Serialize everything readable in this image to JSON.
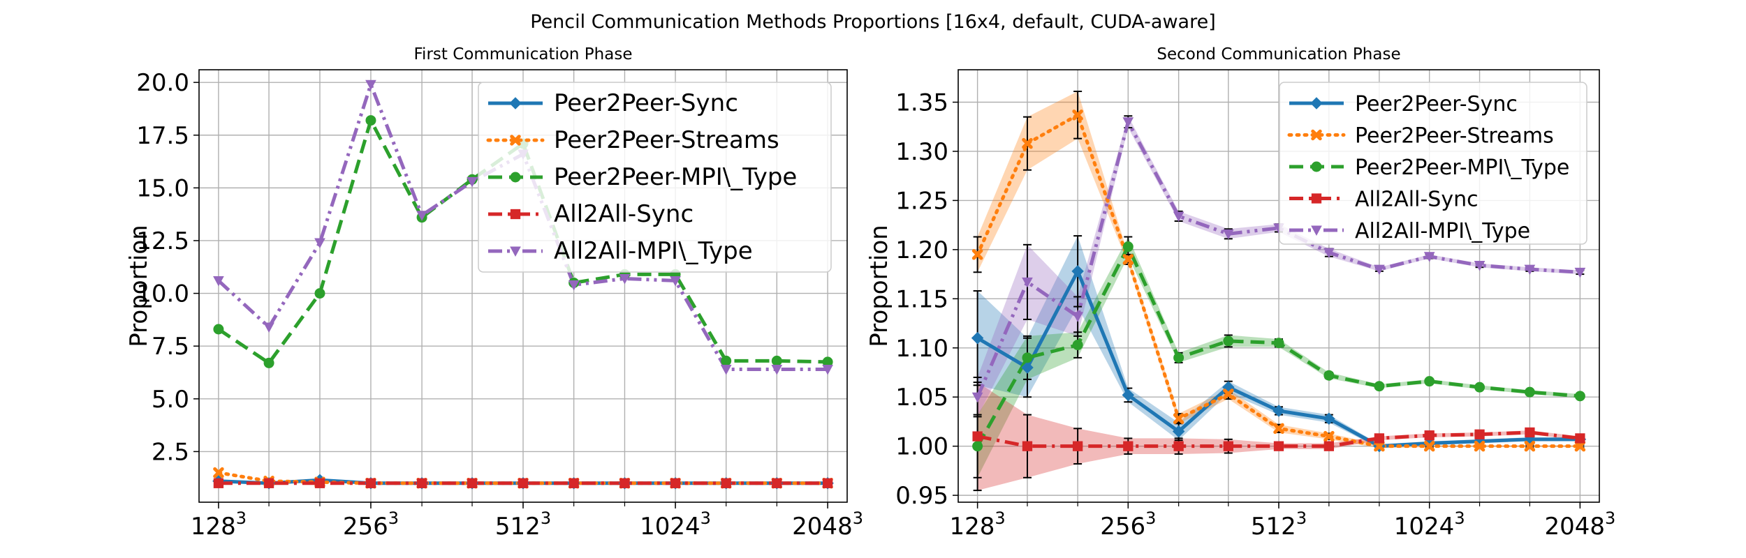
{
  "figure": {
    "title": "Pencil Communication Methods Proportions [16x4, default, CUDA-aware]"
  },
  "chart_data": [
    {
      "type": "line",
      "title": "First Communication Phase",
      "xlabel": "",
      "ylabel": "Proportion",
      "x": [
        128,
        161,
        203,
        256,
        323,
        406,
        512,
        645,
        813,
        1024,
        1290,
        1625,
        2048
      ],
      "xscale": "log",
      "xticks": [
        {
          "value": 128,
          "base": "128",
          "exp": "3"
        },
        {
          "value": 256,
          "base": "256",
          "exp": "3"
        },
        {
          "value": 512,
          "base": "512",
          "exp": "3"
        },
        {
          "value": 1024,
          "base": "1024",
          "exp": "3"
        },
        {
          "value": 2048,
          "base": "2048",
          "exp": "3"
        }
      ],
      "yticks": [
        {
          "value": 2.5,
          "label": "2.5"
        },
        {
          "value": 5,
          "label": "5.0"
        },
        {
          "value": 7.5,
          "label": "7.5"
        },
        {
          "value": 10,
          "label": "10.0"
        },
        {
          "value": 12.5,
          "label": "12.5"
        },
        {
          "value": 15,
          "label": "15.0"
        },
        {
          "value": 17.5,
          "label": "17.5"
        },
        {
          "value": 20,
          "label": "20.0"
        }
      ],
      "ylim": [
        0.1,
        20.6
      ],
      "grid": true,
      "legend": "top-right",
      "series": [
        {
          "name": "Peer2Peer-Sync",
          "color": "#1f77b4",
          "dash": "solid",
          "marker": "diamond",
          "values": [
            1.1,
            1.0,
            1.15,
            1.0,
            1.0,
            1.0,
            1.0,
            1.0,
            1.0,
            1.0,
            1.0,
            1.0,
            1.0
          ]
        },
        {
          "name": "Peer2Peer-Streams",
          "color": "#ff7f0e",
          "dash": "dot",
          "marker": "x",
          "values": [
            1.5,
            1.1,
            1.05,
            1.0,
            1.0,
            1.0,
            1.0,
            1.0,
            1.0,
            1.0,
            1.0,
            1.0,
            1.0
          ]
        },
        {
          "name": "Peer2Peer-MPI\\_Type",
          "color": "#2ca02c",
          "dash": "dash",
          "marker": "circle",
          "values": [
            8.3,
            6.7,
            10.0,
            18.2,
            13.6,
            15.4,
            17.1,
            10.5,
            10.9,
            10.9,
            6.8,
            6.8,
            6.75
          ]
        },
        {
          "name": "All2All-Sync",
          "color": "#d62728",
          "dash": "dashdot",
          "marker": "square",
          "values": [
            1.0,
            1.0,
            1.0,
            1.0,
            1.0,
            1.0,
            1.0,
            1.0,
            1.0,
            1.0,
            1.0,
            1.0,
            1.0
          ]
        },
        {
          "name": "All2All-MPI\\_Type",
          "color": "#9467bd",
          "dash": "dashdotdot",
          "marker": "triangle-down",
          "values": [
            10.6,
            8.4,
            12.4,
            19.9,
            13.7,
            15.3,
            16.6,
            10.4,
            10.7,
            10.6,
            6.4,
            6.4,
            6.4
          ]
        }
      ]
    },
    {
      "type": "line",
      "title": "Second Communication Phase",
      "xlabel": "",
      "ylabel": "Proportion",
      "x": [
        128,
        161,
        203,
        256,
        323,
        406,
        512,
        645,
        813,
        1024,
        1290,
        1625,
        2048
      ],
      "xscale": "log",
      "xticks": [
        {
          "value": 128,
          "base": "128",
          "exp": "3"
        },
        {
          "value": 256,
          "base": "256",
          "exp": "3"
        },
        {
          "value": 512,
          "base": "512",
          "exp": "3"
        },
        {
          "value": 1024,
          "base": "1024",
          "exp": "3"
        },
        {
          "value": 2048,
          "base": "2048",
          "exp": "3"
        }
      ],
      "yticks": [
        {
          "value": 0.95,
          "label": "0.95"
        },
        {
          "value": 1.0,
          "label": "1.00"
        },
        {
          "value": 1.05,
          "label": "1.05"
        },
        {
          "value": 1.1,
          "label": "1.10"
        },
        {
          "value": 1.15,
          "label": "1.15"
        },
        {
          "value": 1.2,
          "label": "1.20"
        },
        {
          "value": 1.25,
          "label": "1.25"
        },
        {
          "value": 1.3,
          "label": "1.30"
        },
        {
          "value": 1.35,
          "label": "1.35"
        }
      ],
      "ylim": [
        0.943,
        1.383
      ],
      "grid": true,
      "legend": "top-right",
      "series": [
        {
          "name": "Peer2Peer-Sync",
          "color": "#1f77b4",
          "dash": "solid",
          "marker": "diamond",
          "values": [
            1.11,
            1.08,
            1.178,
            1.052,
            1.015,
            1.06,
            1.036,
            1.028,
            1.0,
            1.003,
            1.005,
            1.007,
            1.007
          ],
          "err": [
            0.048,
            0.03,
            0.036,
            0.007,
            0.009,
            0.006,
            0.004,
            0.004,
            0.002,
            0.002,
            0.002,
            0.002,
            0.002
          ]
        },
        {
          "name": "Peer2Peer-Streams",
          "color": "#ff7f0e",
          "dash": "dot",
          "marker": "x",
          "values": [
            1.195,
            1.308,
            1.337,
            1.19,
            1.028,
            1.053,
            1.018,
            1.01,
            1.0,
            1.0,
            1.0,
            1.0,
            1.0
          ],
          "err": [
            0.018,
            0.027,
            0.024,
            0.005,
            0.005,
            0.005,
            0.004,
            0.003,
            0.002,
            0.001,
            0.001,
            0.001,
            0.001
          ]
        },
        {
          "name": "Peer2Peer-MPI\\_Type",
          "color": "#2ca02c",
          "dash": "dash",
          "marker": "circle",
          "values": [
            1.0,
            1.09,
            1.103,
            1.203,
            1.09,
            1.107,
            1.105,
            1.072,
            1.061,
            1.066,
            1.06,
            1.055,
            1.051
          ],
          "err": [
            0.032,
            0.022,
            0.013,
            0.01,
            0.005,
            0.006,
            0.004,
            0.003,
            0.002,
            0.002,
            0.002,
            0.002,
            0.002
          ]
        },
        {
          "name": "All2All-Sync",
          "color": "#d62728",
          "dash": "dashdot",
          "marker": "square",
          "values": [
            1.01,
            1.0,
            1.0,
            1.0,
            1.0,
            1.0,
            1.0,
            1.0,
            1.008,
            1.011,
            1.012,
            1.014,
            1.008
          ],
          "err": [
            0.055,
            0.032,
            0.018,
            0.008,
            0.008,
            0.007,
            0.003,
            0.003,
            0.002,
            0.002,
            0.002,
            0.002,
            0.002
          ]
        },
        {
          "name": "All2All-MPI\\_Type",
          "color": "#9467bd",
          "dash": "dashdotdot",
          "marker": "triangle-down",
          "values": [
            1.05,
            1.167,
            1.132,
            1.33,
            1.234,
            1.216,
            1.222,
            1.197,
            1.18,
            1.193,
            1.184,
            1.18,
            1.177
          ],
          "err": [
            0.02,
            0.038,
            0.02,
            0.006,
            0.005,
            0.005,
            0.004,
            0.004,
            0.002,
            0.002,
            0.002,
            0.002,
            0.002
          ]
        }
      ]
    }
  ]
}
